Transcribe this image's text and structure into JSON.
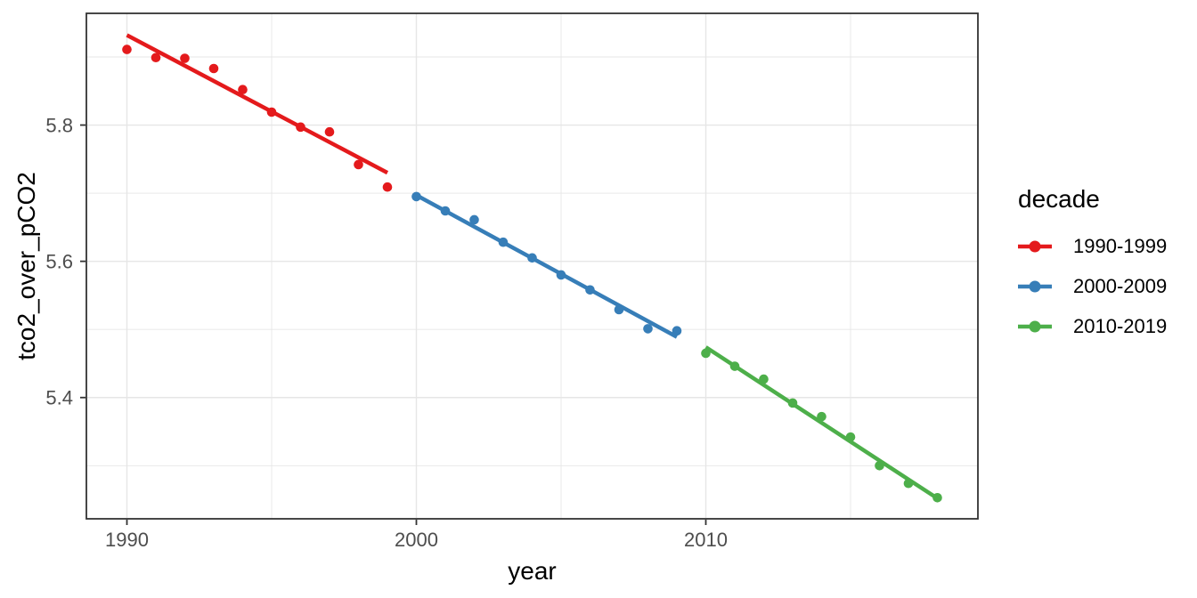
{
  "chart_data": {
    "type": "scatter",
    "title": "",
    "xlabel": "year",
    "ylabel": "tco2_over_pCO2",
    "legend_title": "decade",
    "legend_position": "right",
    "grid": true,
    "x_range": [
      1988.6,
      2019.4
    ],
    "y_range": [
      5.222,
      5.964
    ],
    "x_ticks": [
      {
        "value": 1990,
        "label": "1990"
      },
      {
        "value": 2000,
        "label": "2000"
      },
      {
        "value": 2010,
        "label": "2010"
      }
    ],
    "x_minor_ticks": [
      1995,
      2005,
      2015
    ],
    "y_ticks": [
      {
        "value": 5.4,
        "label": "5.4"
      },
      {
        "value": 5.6,
        "label": "5.6"
      },
      {
        "value": 5.8,
        "label": "5.8"
      }
    ],
    "y_minor_ticks": [
      5.3,
      5.5,
      5.7,
      5.9
    ],
    "series": [
      {
        "name": "1990-1999",
        "color": "#E41A1C",
        "x": [
          1990,
          1991,
          1992,
          1993,
          1994,
          1995,
          1996,
          1997,
          1998,
          1999
        ],
        "y": [
          5.911,
          5.899,
          5.898,
          5.883,
          5.852,
          5.819,
          5.797,
          5.79,
          5.742,
          5.709
        ],
        "trend": {
          "x": [
            1990,
            1999
          ],
          "y": [
            5.932,
            5.73
          ]
        }
      },
      {
        "name": "2000-2009",
        "color": "#377EB8",
        "x": [
          2000,
          2001,
          2002,
          2003,
          2004,
          2005,
          2006,
          2007,
          2008,
          2009
        ],
        "y": [
          5.695,
          5.674,
          5.661,
          5.628,
          5.605,
          5.58,
          5.558,
          5.529,
          5.501,
          5.498
        ],
        "trend": {
          "x": [
            2000,
            2009
          ],
          "y": [
            5.697,
            5.489
          ]
        }
      },
      {
        "name": "2010-2019",
        "color": "#4DAF4A",
        "x": [
          2010,
          2011,
          2012,
          2013,
          2014,
          2015,
          2016,
          2017,
          2018
        ],
        "y": [
          5.465,
          5.446,
          5.427,
          5.392,
          5.372,
          5.342,
          5.3,
          5.274,
          5.253
        ],
        "trend": {
          "x": [
            2010,
            2018
          ],
          "y": [
            5.474,
            5.252
          ]
        }
      }
    ],
    "style": {
      "point_radius": 5.3,
      "trend_width": 4.5,
      "grid_color": "#E6E6E6",
      "panel_border_color": "#333333",
      "tick_label_color": "#4D4D4D",
      "text_color": "#000000",
      "background": "#FFFFFF"
    }
  }
}
